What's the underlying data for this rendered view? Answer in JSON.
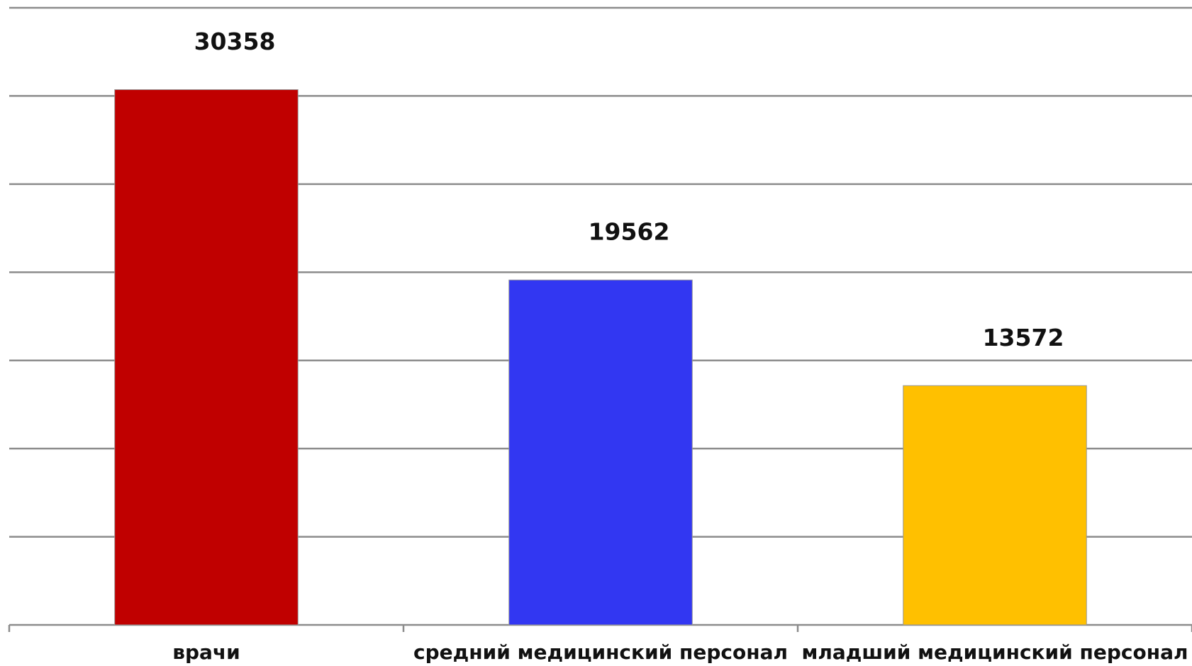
{
  "chart_data": {
    "type": "bar",
    "categories": [
      "врачи",
      "средний медицинский персонал",
      "младший медицинский персонал"
    ],
    "values": [
      30358,
      19562,
      13572
    ],
    "colors": [
      "#c00000",
      "#3237f2",
      "#ffc000"
    ],
    "ylim": [
      0,
      35000
    ],
    "yticks": [
      0,
      5000,
      10000,
      15000,
      20000,
      25000,
      30000,
      35000
    ],
    "grid": true
  }
}
